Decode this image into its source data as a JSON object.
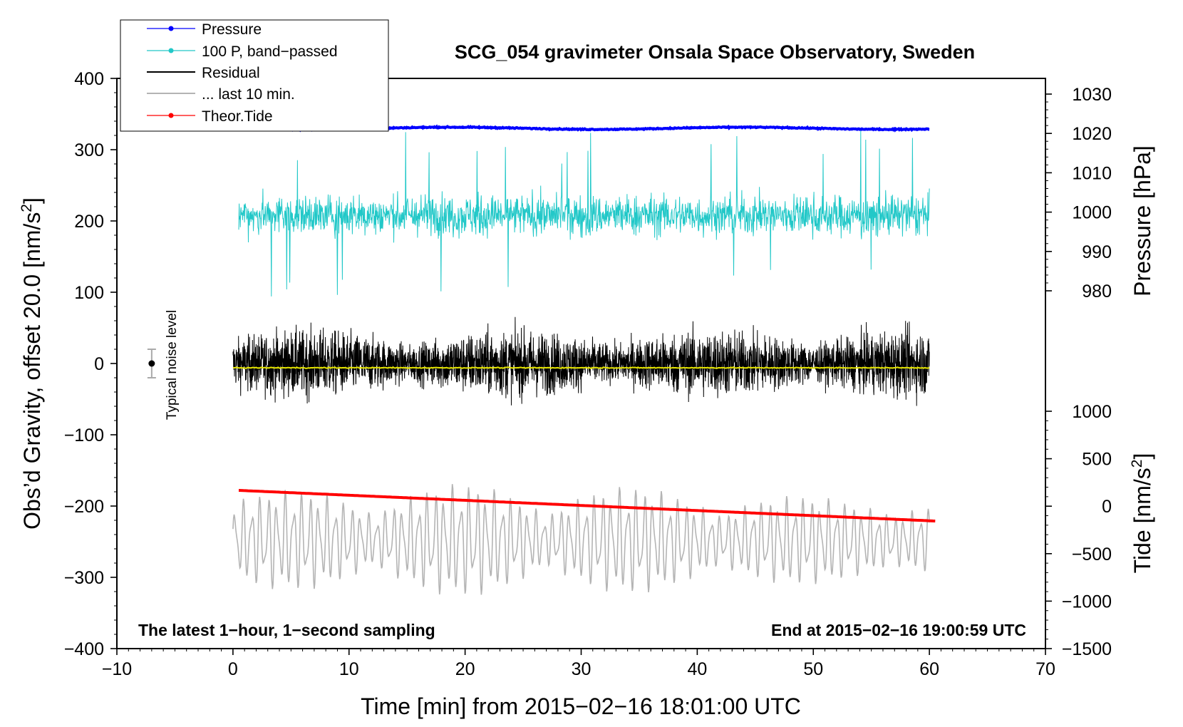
{
  "chart_data": {
    "type": "line",
    "title": "SCG_054 gravimeter Onsala Space Observatory, Sweden",
    "xlabel": "Time [min] from 2015−02−16 18:01:00 UTC",
    "ylabel_left": "Obs’d Gravity, offset 20.0 [nm/s",
    "ylabel_left_sup": "2",
    "ylabel_left_end": "]",
    "ylabel_right_pressure": "Pressure [hPa]",
    "ylabel_right_tide": "Tide [nm/s",
    "ylabel_right_tide_sup": "2",
    "ylabel_right_tide_end": "]",
    "xlim": [
      -10,
      70
    ],
    "ylim": [
      -400,
      400
    ],
    "x_ticks": [
      -10,
      0,
      10,
      20,
      30,
      40,
      50,
      60,
      70
    ],
    "x_tick_labels": [
      "−10",
      "0",
      "10",
      "20",
      "30",
      "40",
      "50",
      "60",
      "70"
    ],
    "y_ticks": [
      400,
      300,
      200,
      100,
      0,
      -100,
      -200,
      -300,
      -400
    ],
    "y_tick_labels": [
      "400",
      "300",
      "200",
      "100",
      "0",
      "−100",
      "−200",
      "−300",
      "−400"
    ],
    "pressure_axis": {
      "ticks": [
        1030,
        1020,
        1010,
        1000,
        990,
        980
      ],
      "tick_labels": [
        "1030",
        "1020",
        "1010",
        "1000",
        "990",
        "980"
      ],
      "ylim": [
        1030,
        980
      ],
      "left_equiv": [
        378,
        102
      ]
    },
    "tide_axis": {
      "ticks": [
        1000,
        500,
        0,
        -500,
        -1000,
        -1500
      ],
      "tick_labels": [
        "1000",
        "500",
        "0",
        "−500",
        "−1000",
        "−1500"
      ],
      "ylim": [
        1000,
        -1500
      ],
      "left_equiv": [
        -67,
        -400
      ]
    },
    "legend": [
      "Pressure",
      "100 P, band−passed",
      "Residual",
      "... last 10 min.",
      "Theor.Tide"
    ],
    "annotation_left": "The latest 1−hour, 1−second sampling",
    "annotation_right": "End at 2015−02−16 19:00:59 UTC",
    "noise_label": "Typical noise level",
    "noise_bar": {
      "x": -7,
      "y": 0,
      "half_range": 20
    },
    "series": [
      {
        "name": "Pressure",
        "color": "#0000ff",
        "x_range": [
          0.5,
          60
        ],
        "values_hpa": 1021.7,
        "left_axis_level": 330
      },
      {
        "name": "100 P, band−passed",
        "color": "#22c8c8",
        "x_range": [
          0.5,
          60
        ],
        "center": 208,
        "amplitude": 40
      },
      {
        "name": "Residual",
        "color": "#000000",
        "x_range": [
          0,
          60
        ],
        "center": 0,
        "amplitude": 70
      },
      {
        "name": "Residual mean",
        "color": "#e6e600",
        "x_range": [
          0,
          60
        ],
        "values": -6
      },
      {
        "name": "... last 10 min.",
        "color": "#b4b4b4",
        "x_range": [
          0,
          60
        ],
        "center": -248,
        "amplitude": 70
      },
      {
        "name": "Theor.Tide",
        "color": "#ff0000",
        "x": [
          0.5,
          60.5
        ],
        "values_left_axis": [
          -178,
          -221
        ],
        "values_tide": [
          150,
          -180
        ]
      }
    ]
  }
}
